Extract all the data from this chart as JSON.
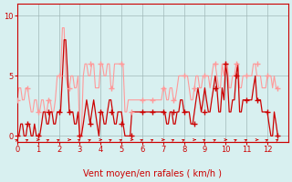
{
  "title": "",
  "xlabel": "Vent moyen/en rafales ( km/h )",
  "ylabel": "",
  "bg_color": "#d8f0f0",
  "grid_color": "#a0b8b8",
  "line1_color": "#ff9999",
  "line2_color": "#cc0000",
  "marker_color": "#cc0000",
  "xlim": [
    0,
    13
  ],
  "ylim": [
    -0.5,
    11
  ],
  "yticks": [
    0,
    5,
    10
  ],
  "xticks": [
    0,
    1,
    2,
    3,
    4,
    5,
    6,
    7,
    8,
    9,
    10,
    11,
    12
  ],
  "x": [
    0,
    0.08,
    0.17,
    0.25,
    0.33,
    0.42,
    0.5,
    0.58,
    0.67,
    0.75,
    0.83,
    0.92,
    1.0,
    1.08,
    1.17,
    1.25,
    1.33,
    1.42,
    1.5,
    1.58,
    1.67,
    1.75,
    1.83,
    1.92,
    2.0,
    2.08,
    2.17,
    2.25,
    2.33,
    2.42,
    2.5,
    2.58,
    2.67,
    2.75,
    2.83,
    2.92,
    3.0,
    3.08,
    3.17,
    3.25,
    3.33,
    3.42,
    3.5,
    3.58,
    3.67,
    3.75,
    3.83,
    3.92,
    4.0,
    4.08,
    4.17,
    4.25,
    4.33,
    4.42,
    4.5,
    4.58,
    4.67,
    4.75,
    4.83,
    4.92,
    5.0,
    5.08,
    5.17,
    5.25,
    5.33,
    5.42,
    5.5,
    5.58,
    5.67,
    5.75,
    5.83,
    5.92,
    6.0,
    6.08,
    6.17,
    6.25,
    6.33,
    6.42,
    6.5,
    6.58,
    6.67,
    6.75,
    6.83,
    6.92,
    7.0,
    7.08,
    7.17,
    7.25,
    7.33,
    7.42,
    7.5,
    7.58,
    7.67,
    7.75,
    7.83,
    7.92,
    8.0,
    8.08,
    8.17,
    8.25,
    8.33,
    8.42,
    8.5,
    8.58,
    8.67,
    8.75,
    8.83,
    8.92,
    9.0,
    9.08,
    9.17,
    9.25,
    9.33,
    9.42,
    9.5,
    9.58,
    9.67,
    9.75,
    9.83,
    9.92,
    10.0,
    10.08,
    10.17,
    10.25,
    10.33,
    10.42,
    10.5,
    10.58,
    10.67,
    10.75,
    10.83,
    10.92,
    11.0,
    11.08,
    11.17,
    11.25,
    11.33,
    11.42,
    11.5,
    11.58,
    11.67,
    11.75,
    11.83,
    11.92,
    12.0,
    12.08,
    12.17,
    12.25,
    12.33,
    12.42,
    12.5
  ],
  "rafales": [
    3,
    4,
    4,
    3,
    3,
    4,
    4,
    3,
    2,
    2,
    3,
    3,
    2,
    2,
    3,
    3,
    2,
    2,
    3,
    3,
    2,
    2,
    3,
    5,
    5,
    5,
    9,
    9,
    5,
    4,
    4,
    5,
    5,
    4,
    4,
    5,
    0,
    0,
    5,
    6,
    6,
    5,
    5,
    6,
    6,
    4,
    4,
    4,
    6,
    6,
    5,
    5,
    6,
    6,
    4,
    4,
    6,
    6,
    6,
    6,
    6,
    6,
    2,
    2,
    3,
    3,
    3,
    3,
    3,
    3,
    3,
    3,
    3,
    3,
    3,
    3,
    3,
    3,
    3,
    3,
    3,
    3,
    3,
    3,
    4,
    4,
    3,
    3,
    4,
    4,
    3,
    3,
    4,
    5,
    5,
    5,
    5,
    5,
    5,
    4,
    3,
    3,
    4,
    5,
    5,
    4,
    4,
    5,
    5,
    5,
    5,
    4,
    5,
    6,
    6,
    5,
    4,
    4,
    6,
    5,
    6,
    6,
    4,
    4,
    5,
    5,
    6,
    6,
    4,
    4,
    5,
    5,
    5,
    5,
    5,
    5,
    6,
    6,
    5,
    5,
    5,
    4,
    4,
    4,
    5,
    5,
    5,
    4,
    5,
    4,
    4
  ],
  "moyen": [
    0,
    0,
    1,
    1,
    0,
    0,
    1,
    1,
    0,
    0,
    1,
    0,
    0,
    0,
    1,
    2,
    2,
    1,
    1,
    2,
    2,
    1,
    1,
    2,
    2,
    2,
    5,
    8,
    8,
    5,
    2,
    2,
    2,
    1,
    1,
    2,
    0,
    0,
    1,
    2,
    3,
    2,
    1,
    2,
    3,
    2,
    1,
    0,
    2,
    2,
    1,
    1,
    2,
    3,
    3,
    2,
    1,
    1,
    2,
    2,
    2,
    1,
    0,
    0,
    0,
    0,
    2,
    2,
    2,
    2,
    2,
    2,
    2,
    2,
    2,
    2,
    2,
    2,
    2,
    2,
    2,
    2,
    2,
    2,
    2,
    2,
    1,
    1,
    2,
    2,
    1,
    1,
    2,
    2,
    3,
    3,
    2,
    2,
    2,
    2,
    1,
    1,
    2,
    3,
    4,
    3,
    2,
    3,
    4,
    3,
    2,
    2,
    3,
    4,
    5,
    4,
    2,
    2,
    4,
    3,
    6,
    5,
    2,
    2,
    3,
    3,
    5,
    6,
    2,
    2,
    3,
    3,
    3,
    3,
    3,
    3,
    4,
    5,
    3,
    3,
    3,
    2,
    2,
    2,
    2,
    1,
    0,
    0,
    2,
    1,
    0
  ],
  "marker_x_rafales": [
    0,
    0.5,
    1.0,
    1.5,
    2.0,
    2.5,
    3.0,
    3.5,
    4.0,
    4.5,
    5.0,
    5.5,
    6.0,
    6.5,
    7.0,
    7.5,
    8.0,
    8.5,
    9.0,
    9.5,
    10.0,
    10.5,
    11.0,
    11.5,
    12.0,
    12.5
  ],
  "marker_y_rafales": [
    3,
    4,
    2,
    3,
    5,
    4,
    0,
    6,
    6,
    4,
    6,
    2,
    3,
    3,
    4,
    3,
    5,
    4,
    5,
    6,
    6,
    6,
    5,
    6,
    5,
    4
  ],
  "marker_x_moyen": [
    0,
    0.5,
    1.0,
    1.5,
    2.0,
    2.5,
    3.0,
    3.5,
    4.0,
    4.5,
    5.0,
    5.5,
    6.0,
    6.5,
    7.0,
    7.5,
    8.0,
    8.5,
    9.0,
    9.5,
    10.0,
    10.5,
    11.0,
    11.5,
    12.0,
    12.5
  ],
  "marker_y_moyen": [
    0,
    1,
    0,
    2,
    2,
    2,
    0,
    1,
    2,
    2,
    1,
    0,
    2,
    2,
    2,
    2,
    2,
    1,
    2,
    4,
    6,
    5,
    3,
    3,
    2,
    0
  ],
  "arrow_color": "#cc0000",
  "bottom_line_color": "#cc0000"
}
